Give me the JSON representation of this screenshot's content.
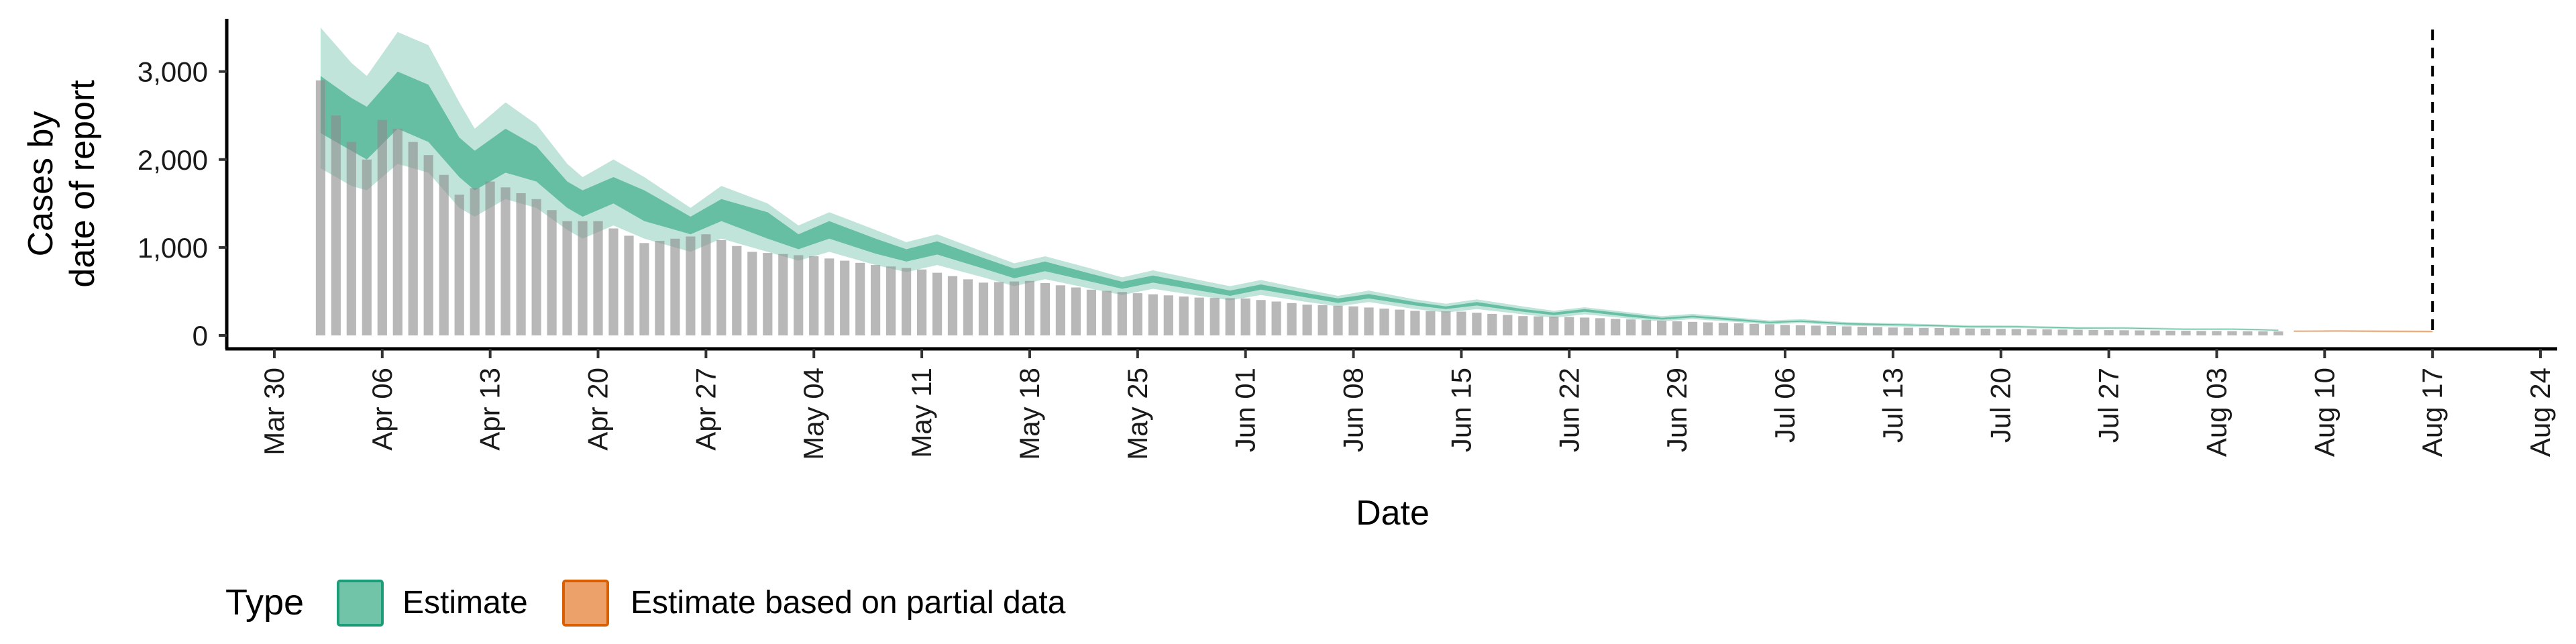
{
  "chart_data": {
    "type": "bar",
    "title": "",
    "xlabel": "Date",
    "ylabel_lines": [
      "Cases by",
      "date of report"
    ],
    "x_range": [
      "2020-03-27",
      "2020-08-25"
    ],
    "ylim": [
      0,
      3600
    ],
    "y_ticks": [
      0,
      1000,
      2000,
      3000
    ],
    "y_tick_labels": [
      "0",
      "1,000",
      "2,000",
      "3,000"
    ],
    "x_ticks": [
      "2020-03-30",
      "2020-04-06",
      "2020-04-13",
      "2020-04-20",
      "2020-04-27",
      "2020-05-04",
      "2020-05-11",
      "2020-05-18",
      "2020-05-25",
      "2020-06-01",
      "2020-06-08",
      "2020-06-15",
      "2020-06-22",
      "2020-06-29",
      "2020-07-06",
      "2020-07-13",
      "2020-07-20",
      "2020-07-27",
      "2020-08-03",
      "2020-08-10",
      "2020-08-17",
      "2020-08-24"
    ],
    "x_tick_labels": [
      "Mar 30",
      "Apr 06",
      "Apr 13",
      "Apr 20",
      "Apr 27",
      "May 04",
      "May 11",
      "May 18",
      "May 25",
      "Jun 01",
      "Jun 08",
      "Jun 15",
      "Jun 22",
      "Jun 29",
      "Jul 06",
      "Jul 13",
      "Jul 20",
      "Jul 27",
      "Aug 03",
      "Aug 10",
      "Aug 17",
      "Aug 24"
    ],
    "vline_date": "2020-08-17",
    "bars_start_date": "2020-04-02",
    "bars_end_date": "2020-08-07",
    "observed_anchors": [
      [
        "2020-04-02",
        2900
      ],
      [
        "2020-04-03",
        2500
      ],
      [
        "2020-04-04",
        2200
      ],
      [
        "2020-04-05",
        2000
      ],
      [
        "2020-04-06",
        2450
      ],
      [
        "2020-04-07",
        2350
      ],
      [
        "2020-04-09",
        2050
      ],
      [
        "2020-04-11",
        1600
      ],
      [
        "2020-04-13",
        1750
      ],
      [
        "2020-04-16",
        1550
      ],
      [
        "2020-04-18",
        1300
      ],
      [
        "2020-04-20",
        1300
      ],
      [
        "2020-04-23",
        1050
      ],
      [
        "2020-04-27",
        1150
      ],
      [
        "2020-04-30",
        950
      ],
      [
        "2020-05-04",
        900
      ],
      [
        "2020-05-08",
        800
      ],
      [
        "2020-05-11",
        750
      ],
      [
        "2020-05-15",
        600
      ],
      [
        "2020-05-18",
        620
      ],
      [
        "2020-05-22",
        520
      ],
      [
        "2020-05-25",
        480
      ],
      [
        "2020-05-29",
        430
      ],
      [
        "2020-06-01",
        420
      ],
      [
        "2020-06-05",
        350
      ],
      [
        "2020-06-08",
        330
      ],
      [
        "2020-06-12",
        280
      ],
      [
        "2020-06-15",
        270
      ],
      [
        "2020-06-19",
        220
      ],
      [
        "2020-06-22",
        210
      ],
      [
        "2020-06-29",
        160
      ],
      [
        "2020-07-06",
        120
      ],
      [
        "2020-07-13",
        90
      ],
      [
        "2020-07-20",
        75
      ],
      [
        "2020-07-27",
        60
      ],
      [
        "2020-08-03",
        50
      ],
      [
        "2020-08-07",
        45
      ]
    ],
    "series": [
      {
        "name": "Estimate",
        "color": "#1b9e77",
        "bands": [
          [
            "2020-04-02",
            1900,
            2300,
            2950,
            3500
          ],
          [
            "2020-04-04",
            1700,
            2100,
            2700,
            3100
          ],
          [
            "2020-04-05",
            1650,
            2000,
            2600,
            2950
          ],
          [
            "2020-04-07",
            1950,
            2350,
            3000,
            3450
          ],
          [
            "2020-04-09",
            1850,
            2200,
            2850,
            3300
          ],
          [
            "2020-04-11",
            1450,
            1800,
            2250,
            2650
          ],
          [
            "2020-04-12",
            1350,
            1650,
            2100,
            2350
          ],
          [
            "2020-04-14",
            1550,
            1850,
            2350,
            2650
          ],
          [
            "2020-04-16",
            1450,
            1750,
            2150,
            2400
          ],
          [
            "2020-04-18",
            1200,
            1450,
            1750,
            1950
          ],
          [
            "2020-04-19",
            1100,
            1350,
            1650,
            1800
          ],
          [
            "2020-04-21",
            1250,
            1500,
            1800,
            2000
          ],
          [
            "2020-04-23",
            1100,
            1300,
            1650,
            1800
          ],
          [
            "2020-04-26",
            950,
            1150,
            1350,
            1450
          ],
          [
            "2020-04-28",
            1100,
            1300,
            1550,
            1700
          ],
          [
            "2020-05-01",
            950,
            1100,
            1400,
            1500
          ],
          [
            "2020-05-03",
            850,
            980,
            1150,
            1250
          ],
          [
            "2020-05-05",
            950,
            1100,
            1300,
            1400
          ],
          [
            "2020-05-08",
            800,
            930,
            1100,
            1200
          ],
          [
            "2020-05-10",
            720,
            840,
            980,
            1060
          ],
          [
            "2020-05-12",
            800,
            920,
            1070,
            1150
          ],
          [
            "2020-05-15",
            660,
            760,
            880,
            950
          ],
          [
            "2020-05-17",
            560,
            650,
            760,
            820
          ],
          [
            "2020-05-19",
            640,
            730,
            840,
            900
          ],
          [
            "2020-05-22",
            530,
            610,
            700,
            760
          ],
          [
            "2020-05-24",
            460,
            530,
            610,
            660
          ],
          [
            "2020-05-26",
            530,
            600,
            680,
            740
          ],
          [
            "2020-05-29",
            450,
            510,
            580,
            630
          ],
          [
            "2020-05-31",
            400,
            450,
            510,
            560
          ],
          [
            "2020-06-02",
            460,
            520,
            580,
            630
          ],
          [
            "2020-06-05",
            380,
            430,
            480,
            520
          ],
          [
            "2020-06-07",
            330,
            370,
            420,
            450
          ],
          [
            "2020-06-09",
            380,
            420,
            470,
            510
          ],
          [
            "2020-06-12",
            300,
            340,
            380,
            410
          ],
          [
            "2020-06-14",
            260,
            300,
            330,
            360
          ],
          [
            "2020-06-16",
            300,
            340,
            380,
            410
          ],
          [
            "2020-06-19",
            240,
            270,
            300,
            330
          ],
          [
            "2020-06-21",
            200,
            230,
            260,
            280
          ],
          [
            "2020-06-23",
            240,
            270,
            300,
            320
          ],
          [
            "2020-06-26",
            190,
            210,
            240,
            260
          ],
          [
            "2020-06-28",
            160,
            180,
            200,
            220
          ],
          [
            "2020-06-30",
            185,
            205,
            225,
            245
          ],
          [
            "2020-07-03",
            150,
            165,
            185,
            200
          ],
          [
            "2020-07-05",
            125,
            140,
            155,
            170
          ],
          [
            "2020-07-07",
            140,
            155,
            170,
            185
          ],
          [
            "2020-07-10",
            110,
            125,
            140,
            150
          ],
          [
            "2020-07-14",
            100,
            112,
            125,
            135
          ],
          [
            "2020-07-18",
            85,
            95,
            105,
            115
          ],
          [
            "2020-07-21",
            85,
            95,
            105,
            112
          ],
          [
            "2020-07-25",
            70,
            78,
            88,
            95
          ],
          [
            "2020-07-28",
            72,
            80,
            88,
            95
          ],
          [
            "2020-08-01",
            60,
            67,
            75,
            82
          ],
          [
            "2020-08-04",
            62,
            68,
            76,
            82
          ],
          [
            "2020-08-07",
            50,
            56,
            62,
            68
          ]
        ]
      },
      {
        "name": "Estimate based on partial data",
        "color": "#d95f02",
        "bands": [
          [
            "2020-08-08",
            38,
            44,
            52,
            58
          ],
          [
            "2020-08-11",
            40,
            46,
            54,
            62
          ],
          [
            "2020-08-14",
            36,
            42,
            50,
            58
          ],
          [
            "2020-08-17",
            34,
            40,
            48,
            56
          ]
        ]
      }
    ],
    "legend": {
      "title": "Type",
      "position": "bottom-left",
      "items": [
        {
          "label": "Estimate",
          "fill": "#72c4a8",
          "stroke": "#1b9e77"
        },
        {
          "label": "Estimate based on partial data",
          "fill": "#eca06a",
          "stroke": "#d95f02"
        }
      ]
    },
    "grid": false
  }
}
